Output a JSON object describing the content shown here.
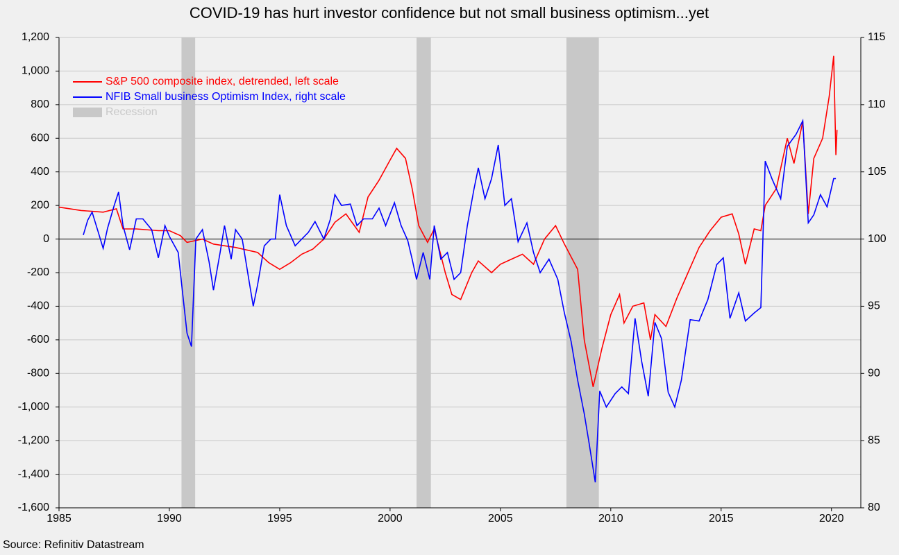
{
  "chart_data": {
    "type": "line",
    "title": "COVID-19 has hurt investor confidence but not small business optimism...yet",
    "source": "Source: Refinitiv Datastream",
    "xlim": [
      1985,
      2021.33
    ],
    "xticks": [
      1985,
      1990,
      1995,
      2000,
      2005,
      2010,
      2015,
      2020
    ],
    "ylim": [
      -1600,
      1200
    ],
    "yticks": [
      {
        "value": -1600,
        "label": "-1,600"
      },
      {
        "value": -1400,
        "label": "-1,400"
      },
      {
        "value": -1200,
        "label": "-1,200"
      },
      {
        "value": -1000,
        "label": "-1,000"
      },
      -800,
      -600,
      -400,
      -200,
      0,
      200,
      400,
      600,
      800,
      {
        "value": 1000,
        "label": "1,000"
      },
      {
        "value": 1200,
        "label": "1,200"
      }
    ],
    "y2lim": [
      80,
      115
    ],
    "y2ticks": [
      80,
      85,
      90,
      95,
      100,
      105,
      110,
      115
    ],
    "grid": true,
    "legend": "upper left",
    "recessions": {
      "name": "Recession",
      "color": "#c8c8c8",
      "periods": [
        [
          1990.55,
          1991.17
        ],
        [
          2001.2,
          2001.85
        ],
        [
          2007.99,
          2009.46
        ]
      ]
    },
    "series": [
      {
        "name": "S&P 500 composite index, detrended, left scale",
        "color": "#ff0000",
        "x": [
          1985.0,
          1986,
          1987,
          1987.6,
          1987.9,
          1988.5,
          1989.5,
          1990,
          1990.5,
          1990.8,
          1991.5,
          1992,
          1993,
          1994,
          1994.5,
          1995,
          1995.5,
          1996,
          1996.5,
          1997,
          1997.5,
          1998,
          1998.6,
          1999,
          1999.5,
          2000,
          2000.3,
          2000.7,
          2001,
          2001.3,
          2001.7,
          2002,
          2002.5,
          2002.8,
          2003.2,
          2003.7,
          2004,
          2004.6,
          2005,
          2005.5,
          2006,
          2006.5,
          2007,
          2007.5,
          2007.9,
          2008.5,
          2008.8,
          2009.2,
          2009.6,
          2010,
          2010.4,
          2010.6,
          2011,
          2011.5,
          2011.8,
          2012,
          2012.5,
          2013,
          2013.5,
          2014,
          2014.5,
          2015,
          2015.5,
          2015.8,
          2016.1,
          2016.5,
          2016.8,
          2017,
          2017.5,
          2018,
          2018.3,
          2018.7,
          2018.95,
          2019.2,
          2019.6,
          2019.9,
          2020.1,
          2020.2,
          2020.25
        ],
        "values": [
          190,
          170,
          160,
          180,
          60,
          60,
          50,
          50,
          20,
          -20,
          0,
          -30,
          -50,
          -80,
          -140,
          -180,
          -140,
          -90,
          -60,
          0,
          100,
          150,
          40,
          250,
          350,
          470,
          540,
          480,
          300,
          80,
          -20,
          60,
          -200,
          -330,
          -360,
          -200,
          -130,
          -200,
          -150,
          -120,
          -90,
          -150,
          0,
          80,
          -30,
          -180,
          -600,
          -880,
          -650,
          -450,
          -330,
          -500,
          -400,
          -380,
          -600,
          -450,
          -520,
          -350,
          -200,
          -50,
          50,
          130,
          150,
          30,
          -150,
          60,
          50,
          200,
          300,
          600,
          450,
          700,
          150,
          480,
          600,
          850,
          1090,
          500,
          650
        ]
      },
      {
        "name": "NFIB Small business Optimism Index, right scale",
        "color": "#0000ff",
        "axis": "y2",
        "x": [
          1986.1,
          1986.3,
          1986.5,
          1986.8,
          1987,
          1987.2,
          1987.5,
          1987.7,
          1987.9,
          1988.2,
          1988.5,
          1988.8,
          1989.2,
          1989.5,
          1989.8,
          1990,
          1990.4,
          1990.6,
          1990.8,
          1991.0,
          1991.2,
          1991.5,
          1991.8,
          1992,
          1992.3,
          1992.5,
          1992.8,
          1993,
          1993.3,
          1993.6,
          1993.8,
          1994,
          1994.3,
          1994.6,
          1994.8,
          1995,
          1995.3,
          1995.7,
          1996,
          1996.3,
          1996.6,
          1997,
          1997.3,
          1997.5,
          1997.8,
          1998.2,
          1998.5,
          1998.8,
          1999.2,
          1999.5,
          1999.8,
          2000.2,
          2000.5,
          2000.8,
          2001,
          2001.2,
          2001.5,
          2001.8,
          2002,
          2002.3,
          2002.6,
          2002.9,
          2003.2,
          2003.5,
          2003.8,
          2004,
          2004.3,
          2004.6,
          2004.9,
          2005.2,
          2005.5,
          2005.8,
          2006.2,
          2006.5,
          2006.8,
          2007.2,
          2007.6,
          2007.9,
          2008.2,
          2008.5,
          2008.8,
          2009.0,
          2009.3,
          2009.5,
          2009.8,
          2010.2,
          2010.5,
          2010.8,
          2011.1,
          2011.4,
          2011.7,
          2012,
          2012.3,
          2012.6,
          2012.9,
          2013.2,
          2013.6,
          2014,
          2014.4,
          2014.8,
          2015.1,
          2015.4,
          2015.8,
          2016.1,
          2016.5,
          2016.8,
          2017.0,
          2017.3,
          2017.7,
          2018.0,
          2018.4,
          2018.7,
          2018.95,
          2019.2,
          2019.5,
          2019.8,
          2020.1,
          2020.2
        ],
        "values": [
          100.3,
          101.4,
          102,
          100.4,
          99.3,
          100.8,
          102.5,
          103.5,
          101,
          99.2,
          101.5,
          101.5,
          100.7,
          98.6,
          101,
          100.2,
          99,
          96,
          93,
          92,
          100,
          100.7,
          98.3,
          96.2,
          99,
          101,
          98.5,
          100.7,
          100,
          97,
          95,
          96.6,
          99.5,
          100,
          100,
          103.3,
          101,
          99.5,
          100,
          100.5,
          101.3,
          100,
          101.5,
          103.3,
          102.5,
          102.6,
          101,
          101.5,
          101.5,
          102.3,
          101,
          102.7,
          101,
          99.9,
          98.5,
          97,
          99,
          97,
          101,
          98.5,
          99,
          97,
          97.5,
          101,
          103.7,
          105.3,
          103,
          104.5,
          107,
          102.5,
          103,
          99.8,
          101.2,
          99,
          97.5,
          98.5,
          97,
          94.5,
          92.4,
          89.5,
          87,
          85,
          81.9,
          88.7,
          87.5,
          88.5,
          89,
          88.5,
          94.1,
          90.9,
          88.3,
          93.8,
          92.6,
          88.6,
          87.5,
          89.5,
          94,
          93.9,
          95.5,
          98.1,
          98.6,
          94.1,
          96,
          93.9,
          94.5,
          94.9,
          105.8,
          104.5,
          103,
          106.9,
          107.8,
          108.8,
          101.2,
          101.8,
          103.3,
          102.4,
          104.5,
          104.5
        ]
      }
    ]
  }
}
